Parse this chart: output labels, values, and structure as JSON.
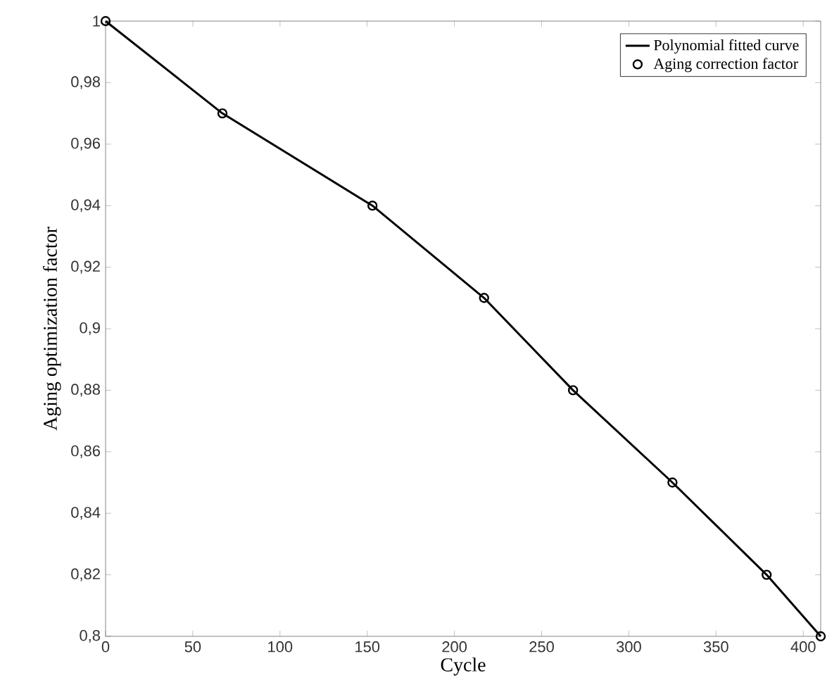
{
  "chart_data": {
    "type": "line",
    "xlabel": "Cycle",
    "ylabel": "Aging optimization factor",
    "xlim": [
      0,
      410
    ],
    "xticks": [
      0,
      50,
      100,
      150,
      200,
      250,
      300,
      350,
      400
    ],
    "ylim": [
      0.8,
      1
    ],
    "yticks": [
      {
        "value": 0.8,
        "label": "0,8"
      },
      {
        "value": 0.82,
        "label": "0,82"
      },
      {
        "value": 0.84,
        "label": "0,84"
      },
      {
        "value": 0.86,
        "label": "0,86"
      },
      {
        "value": 0.88,
        "label": "0,88"
      },
      {
        "value": 0.9,
        "label": "0,9"
      },
      {
        "value": 0.92,
        "label": "0,92"
      },
      {
        "value": 0.94,
        "label": "0,94"
      },
      {
        "value": 0.96,
        "label": "0,96"
      },
      {
        "value": 0.98,
        "label": "0,98"
      },
      {
        "value": 1,
        "label": "1"
      }
    ],
    "grid": false,
    "legend": "top right",
    "series": [
      {
        "name": "Polynomial fitted curve",
        "color": "#000000",
        "marker": "none",
        "x": [
          0,
          67,
          153,
          217,
          268,
          325,
          379,
          410
        ],
        "values": [
          1,
          0.97,
          0.94,
          0.91,
          0.88,
          0.85,
          0.82,
          0.8
        ]
      },
      {
        "name": "Aging correction factor",
        "type": "scatter",
        "color": "#000000",
        "marker": "circle",
        "x": [
          0,
          67,
          153,
          217,
          268,
          325,
          379,
          410
        ],
        "values": [
          1,
          0.97,
          0.94,
          0.91,
          0.88,
          0.85,
          0.82,
          0.8
        ]
      }
    ]
  }
}
